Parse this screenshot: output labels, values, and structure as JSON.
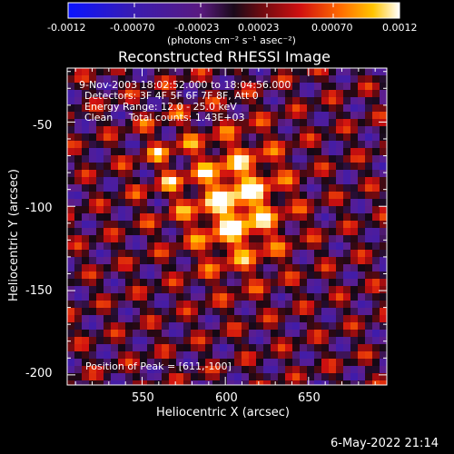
{
  "colorbar": {
    "tick_labels": [
      "-0.0012",
      "-0.00070",
      "-0.00023",
      "0.00023",
      "0.00070",
      "0.0012"
    ],
    "units_label": "(photons cm⁻² s⁻¹ asec⁻²)"
  },
  "plot": {
    "title": "Reconstructed RHESSI Image",
    "annotations": [
      "9-Nov-2003 18:02:52.000 to 18:04:56.000",
      "Detectors: 3F 4F 5F 6F 7F 8F, Att 0",
      "Energy Range: 12.0 - 25.0 keV",
      "Clean     Total counts: 1.43E+03"
    ],
    "peak_label": "Position of Peak = [611,-100]",
    "x_axis_label": "Heliocentric X (arcsec)",
    "y_axis_label": "Heliocentric Y (arcsec)",
    "x_ticks": [
      "550",
      "600",
      "650"
    ],
    "y_ticks": [
      "-50",
      "-100",
      "-150",
      "-200"
    ],
    "x_range": [
      505,
      697
    ],
    "y_range": [
      -206,
      -18
    ]
  },
  "footer": {
    "timestamp": "6-May-2022 21:14"
  }
}
